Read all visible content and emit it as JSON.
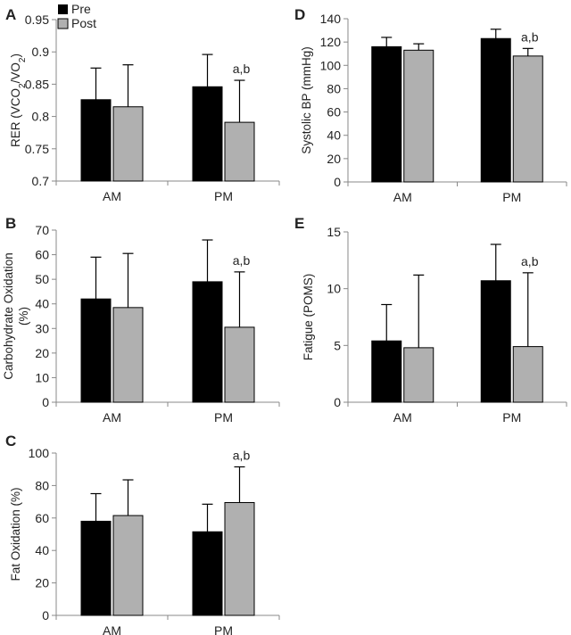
{
  "legend": {
    "items": [
      {
        "label": "Pre",
        "color": "#000000"
      },
      {
        "label": "Post",
        "color": "#b0b0b0"
      }
    ]
  },
  "chart_data": [
    {
      "panel": "A",
      "type": "bar",
      "categories": [
        "AM",
        "PM"
      ],
      "series": [
        {
          "name": "Pre",
          "values": [
            0.826,
            0.846
          ],
          "errors": [
            0.049,
            0.05
          ]
        },
        {
          "name": "Post",
          "values": [
            0.815,
            0.791
          ],
          "errors": [
            0.065,
            0.065
          ]
        }
      ],
      "ylabel_parts": [
        "RER (VCO",
        "2",
        "/VO",
        "2",
        ")"
      ],
      "ylim": [
        0.7,
        0.95
      ],
      "yticks": [
        0.7,
        0.75,
        0.8,
        0.85,
        0.9,
        0.95
      ],
      "ytick_labels": [
        "0.7",
        "0.75",
        "0.8",
        "0.85",
        "0.9",
        "0.95"
      ],
      "annotations": [
        {
          "category": "PM",
          "text": "a,b"
        }
      ],
      "colors": [
        "#000000",
        "#b0b0b0"
      ]
    },
    {
      "panel": "B",
      "type": "bar",
      "categories": [
        "AM",
        "PM"
      ],
      "series": [
        {
          "name": "Pre",
          "values": [
            42,
            49
          ],
          "errors": [
            17,
            17
          ]
        },
        {
          "name": "Post",
          "values": [
            38.5,
            30.5
          ],
          "errors": [
            22,
            22.5
          ]
        }
      ],
      "ylabel_lines": [
        "Carbohydrate Oxidation",
        "(%)"
      ],
      "ylim": [
        0,
        70
      ],
      "yticks": [
        0,
        10,
        20,
        30,
        40,
        50,
        60,
        70
      ],
      "ytick_labels": [
        "0",
        "10",
        "20",
        "30",
        "40",
        "50",
        "60",
        "70"
      ],
      "annotations": [
        {
          "category": "PM",
          "text": "a,b"
        }
      ],
      "colors": [
        "#000000",
        "#b0b0b0"
      ]
    },
    {
      "panel": "C",
      "type": "bar",
      "categories": [
        "AM",
        "PM"
      ],
      "series": [
        {
          "name": "Pre",
          "values": [
            58,
            51.5
          ],
          "errors": [
            17,
            17
          ]
        },
        {
          "name": "Post",
          "values": [
            61.5,
            69.5
          ],
          "errors": [
            22,
            22
          ]
        }
      ],
      "ylabel": "Fat Oxidation (%)",
      "ylim": [
        0,
        100
      ],
      "yticks": [
        0,
        20,
        40,
        60,
        80,
        100
      ],
      "ytick_labels": [
        "0",
        "20",
        "40",
        "60",
        "80",
        "100"
      ],
      "annotations": [
        {
          "category": "PM",
          "text": "a,b"
        }
      ],
      "colors": [
        "#000000",
        "#b0b0b0"
      ]
    },
    {
      "panel": "D",
      "type": "bar",
      "categories": [
        "AM",
        "PM"
      ],
      "series": [
        {
          "name": "Pre",
          "values": [
            116,
            123
          ],
          "errors": [
            8,
            8
          ]
        },
        {
          "name": "Post",
          "values": [
            113,
            108
          ],
          "errors": [
            5.5,
            6.5
          ]
        }
      ],
      "ylabel": "Systolic BP (mmHg)",
      "ylim": [
        0,
        140
      ],
      "yticks": [
        0,
        20,
        40,
        60,
        80,
        100,
        120,
        140
      ],
      "ytick_labels": [
        "0",
        "20",
        "40",
        "60",
        "80",
        "100",
        "120",
        "140"
      ],
      "annotations": [
        {
          "category": "PM",
          "text": "a,b"
        }
      ],
      "colors": [
        "#000000",
        "#b0b0b0"
      ]
    },
    {
      "panel": "E",
      "type": "bar",
      "categories": [
        "AM",
        "PM"
      ],
      "series": [
        {
          "name": "Pre",
          "values": [
            5.4,
            10.7
          ],
          "errors": [
            3.2,
            3.2
          ]
        },
        {
          "name": "Post",
          "values": [
            4.8,
            4.9
          ],
          "errors": [
            6.4,
            6.5
          ]
        }
      ],
      "ylabel": "Fatigue (POMS)",
      "ylim": [
        0,
        15
      ],
      "yticks": [
        0,
        5,
        10,
        15
      ],
      "ytick_labels": [
        "0",
        "5",
        "10",
        "15"
      ],
      "annotations": [
        {
          "category": "PM",
          "text": "a,b"
        }
      ],
      "colors": [
        "#000000",
        "#b0b0b0"
      ]
    }
  ]
}
